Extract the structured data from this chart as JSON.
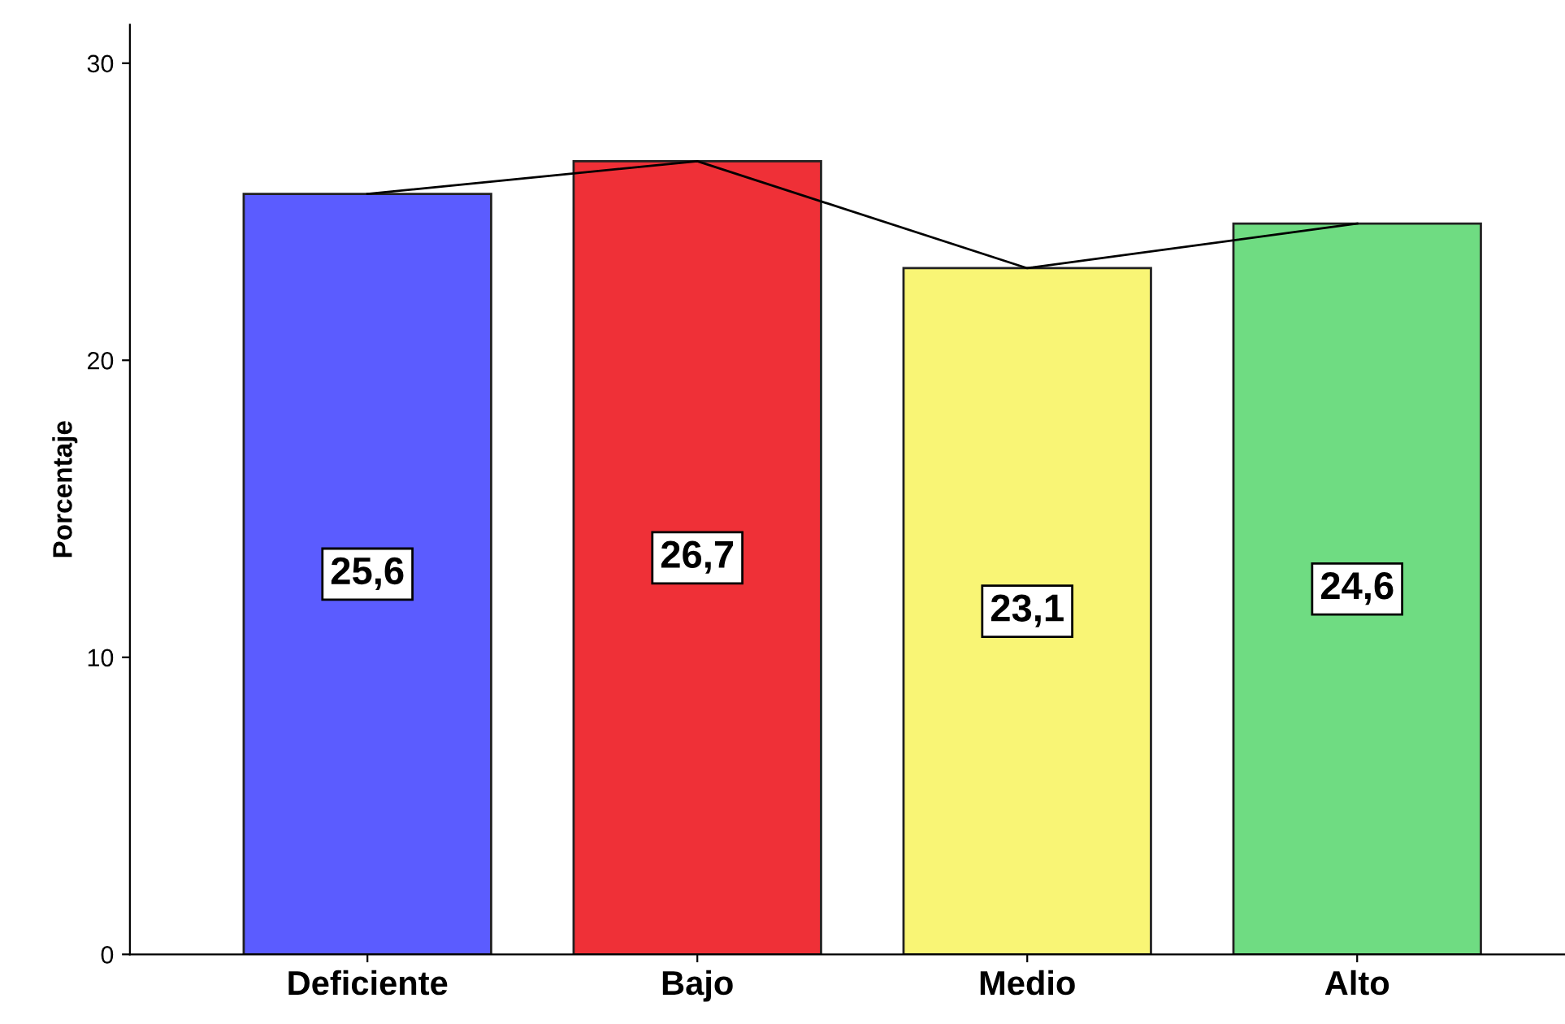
{
  "chart_data": {
    "type": "bar",
    "ylabel": "Porcentaje",
    "categories": [
      "Deficiente",
      "Bajo",
      "Medio",
      "Alto"
    ],
    "series": [
      {
        "colors": [
          "#5b5cff",
          "#ef3037",
          "#f9f575",
          "#6fdc82"
        ],
        "values": [
          25.6,
          26.7,
          23.1,
          24.6
        ],
        "value_labels": [
          "25,6",
          "26,7",
          "23,1",
          "24,6"
        ]
      },
      {
        "type": "line",
        "color": "#000000",
        "values": [
          25.6,
          26.7,
          23.1,
          24.6
        ]
      }
    ],
    "ylim": [
      0,
      31.3
    ],
    "yticks": [
      0,
      10,
      20,
      30
    ],
    "grid": false
  }
}
